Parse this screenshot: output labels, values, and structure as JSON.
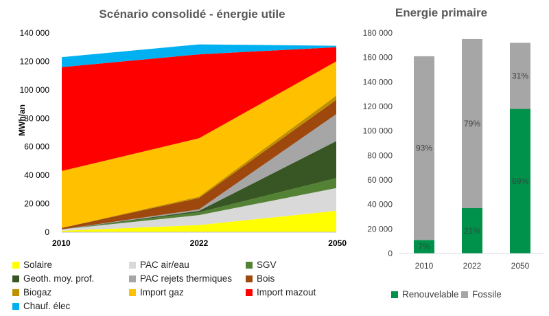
{
  "chart_data": [
    {
      "type": "area",
      "title": "Scénario consolidé - énergie utile",
      "ylabel": "MWh/an",
      "xlabel": "",
      "x": [
        "2010",
        "2022",
        "2050"
      ],
      "ylim": [
        0,
        140000
      ],
      "yticks": [
        "0",
        "20 000",
        "40 000",
        "60 000",
        "80 000",
        "100 000",
        "120 000",
        "140 000"
      ],
      "stacked": true,
      "grid": false,
      "legend_position": "bottom",
      "series": [
        {
          "name": "Solaire",
          "color": "#ffff00",
          "values": [
            1000,
            5000,
            15000
          ]
        },
        {
          "name": "PAC air/eau",
          "color": "#d9d9d9",
          "values": [
            1000,
            7000,
            16000
          ]
        },
        {
          "name": "SGV",
          "color": "#548235",
          "values": [
            0,
            2000,
            7000
          ]
        },
        {
          "name": "Geoth. moy. prof.",
          "color": "#375623",
          "values": [
            0,
            1000,
            26000
          ]
        },
        {
          "name": "PAC rejets thermiques",
          "color": "#a6a6a6",
          "values": [
            0,
            1000,
            19000
          ]
        },
        {
          "name": "Bois",
          "color": "#9e480e",
          "values": [
            1000,
            8000,
            10000
          ]
        },
        {
          "name": "Biogaz",
          "color": "#bf9000",
          "values": [
            0,
            1000,
            3000
          ]
        },
        {
          "name": "Import gaz",
          "color": "#ffc000",
          "values": [
            40000,
            41000,
            24000
          ]
        },
        {
          "name": "Import mazout",
          "color": "#ff0000",
          "values": [
            73000,
            59000,
            10000
          ]
        },
        {
          "name": "Chauf. élec",
          "color": "#00b0f0",
          "values": [
            7000,
            7000,
            1000
          ]
        }
      ]
    },
    {
      "type": "bar",
      "title": "Energie primaire",
      "categories": [
        "2010",
        "2022",
        "2050"
      ],
      "ylim": [
        0,
        180000
      ],
      "yticks": [
        "0",
        "20 000",
        "40 000",
        "60 000",
        "80 000",
        "100 000",
        "120 000",
        "140 000",
        "160 000",
        "180 000"
      ],
      "stacked": true,
      "grid": false,
      "legend_position": "bottom",
      "series": [
        {
          "name": "Renouvelable",
          "color": "#00914a",
          "values": [
            11000,
            37000,
            118000
          ],
          "labels": [
            "7%",
            "21%",
            "69%"
          ]
        },
        {
          "name": "Fossile",
          "color": "#a6a6a6",
          "values": [
            150000,
            138000,
            54000
          ],
          "labels": [
            "93%",
            "79%",
            "31%"
          ]
        }
      ]
    }
  ]
}
